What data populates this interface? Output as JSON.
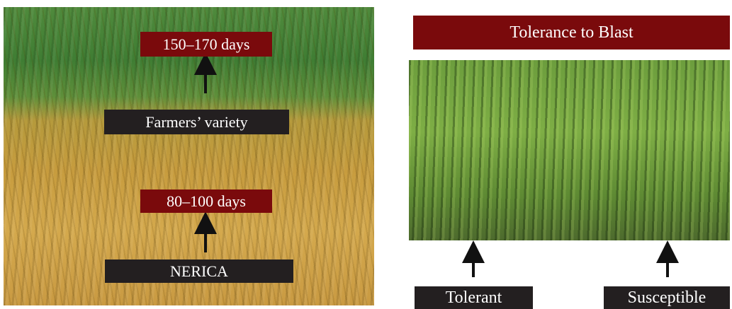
{
  "left_panel": {
    "late_duration": "150–170 days",
    "late_variety": "Farmers’ variety",
    "early_duration": "80–100 days",
    "early_variety": "NERICA"
  },
  "right_panel": {
    "title": "Tolerance to Blast",
    "left_caption": "Tolerant",
    "right_caption": "Susceptible"
  }
}
